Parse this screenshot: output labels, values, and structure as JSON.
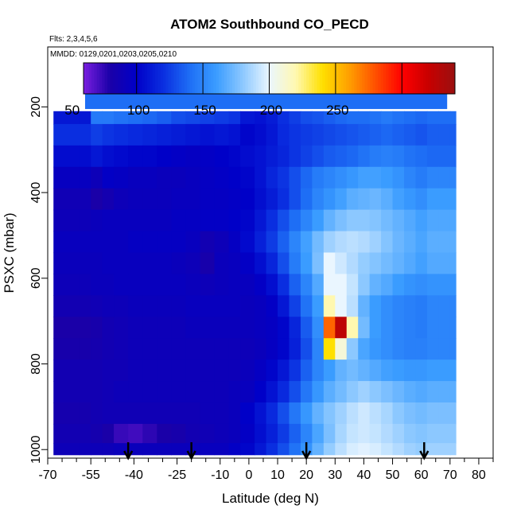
{
  "chart_data": {
    "type": "heatmap",
    "title": "ATOM2 Southbound CO_PECD",
    "flights_note": "Flts: 2,3,4,5,6",
    "dates_note": "MMDD: 0129,0201,0203,0205,0210",
    "xlabel": "Latitude (deg N)",
    "ylabel": "PSXC (mbar)",
    "xlim": [
      -70,
      85
    ],
    "ylim": [
      1020,
      60
    ],
    "x_ticks": [
      -70,
      -55,
      -40,
      -25,
      -10,
      0,
      10,
      20,
      30,
      40,
      50,
      60,
      70,
      80
    ],
    "x_tick_labels": [
      "-70",
      "-55",
      "-40",
      "-25",
      "-10",
      "0",
      "10",
      "20",
      "30",
      "40",
      "50",
      "60",
      "70",
      "80"
    ],
    "x_minor_ticks": [
      -65,
      -60,
      -50,
      -45,
      -35,
      -30,
      -20,
      -15,
      -5,
      5,
      15,
      25,
      35,
      45,
      55,
      65,
      75,
      85
    ],
    "y_ticks": [
      200,
      400,
      600,
      800,
      1000
    ],
    "y_tick_labels": [
      "200",
      "400",
      "600",
      "800",
      "1000"
    ],
    "colorbar": {
      "range": [
        10,
        290
      ],
      "ticks": [
        50,
        100,
        150,
        200,
        250
      ],
      "tick_labels": [
        "50",
        "100",
        "150",
        "200",
        "250"
      ],
      "colors": [
        "#7a1fe0",
        "#1a00a8",
        "#0000c8",
        "#0a2ee0",
        "#1e6ef5",
        "#3a9cff",
        "#8cc8ff",
        "#eaf6ff",
        "#fff8b0",
        "#ffe000",
        "#ffa000",
        "#ff5000",
        "#ff0000",
        "#c80000",
        "#9a1010"
      ]
    },
    "arrows_lat": [
      -42,
      -20,
      20,
      61
    ],
    "lat_edges": [
      -68,
      -59,
      -55,
      -51,
      -47,
      -42,
      -37,
      -32,
      -27,
      -22,
      -17,
      -12,
      -7,
      -3,
      2,
      6,
      10,
      14,
      18,
      22,
      26,
      30,
      34,
      38,
      42,
      46,
      50,
      54,
      58,
      62,
      66,
      70,
      72
    ],
    "top_layer": {
      "lat_range": [
        -57,
        69
      ],
      "p_range": [
        170,
        205
      ],
      "value": 90
    },
    "p_levels": [
      {
        "p": 215,
        "values": [
          60,
          60,
          95,
          95,
          92,
          90,
          88,
          85,
          80,
          78,
          76,
          74,
          72,
          60,
          58,
          62,
          70,
          75,
          80,
          82,
          85,
          88,
          90,
          90,
          92,
          95,
          92,
          90,
          88,
          90,
          90,
          90
        ]
      },
      {
        "p": 265,
        "values": [
          70,
          70,
          75,
          72,
          70,
          68,
          66,
          64,
          62,
          60,
          58,
          60,
          58,
          52,
          55,
          60,
          68,
          72,
          74,
          76,
          78,
          80,
          82,
          84,
          86,
          88,
          86,
          84,
          82,
          85,
          85,
          85
        ]
      },
      {
        "p": 315,
        "values": [
          55,
          55,
          60,
          56,
          54,
          52,
          52,
          50,
          48,
          46,
          48,
          50,
          52,
          55,
          58,
          62,
          66,
          72,
          76,
          80,
          84,
          86,
          88,
          92,
          96,
          98,
          96,
          92,
          90,
          88,
          88,
          88
        ]
      },
      {
        "p": 365,
        "values": [
          45,
          45,
          40,
          48,
          46,
          44,
          44,
          42,
          42,
          44,
          46,
          48,
          50,
          52,
          58,
          66,
          72,
          80,
          88,
          96,
          100,
          104,
          108,
          112,
          112,
          110,
          106,
          100,
          96,
          100,
          100,
          100
        ]
      },
      {
        "p": 415,
        "values": [
          38,
          38,
          30,
          35,
          40,
          42,
          42,
          42,
          44,
          44,
          46,
          46,
          48,
          50,
          56,
          62,
          70,
          80,
          90,
          100,
          106,
          112,
          118,
          120,
          122,
          118,
          112,
          108,
          104,
          110,
          110,
          110
        ]
      },
      {
        "p": 465,
        "values": [
          40,
          40,
          42,
          44,
          44,
          44,
          44,
          44,
          46,
          46,
          48,
          48,
          50,
          52,
          60,
          70,
          80,
          90,
          100,
          110,
          120,
          126,
          130,
          130,
          128,
          124,
          120,
          116,
          112,
          115,
          115,
          115
        ]
      },
      {
        "p": 515,
        "values": [
          44,
          44,
          44,
          44,
          44,
          46,
          46,
          46,
          46,
          44,
          36,
          40,
          46,
          54,
          64,
          74,
          86,
          100,
          112,
          124,
          134,
          138,
          140,
          138,
          134,
          128,
          122,
          118,
          114,
          118,
          118,
          118
        ]
      },
      {
        "p": 565,
        "values": [
          42,
          42,
          42,
          44,
          44,
          44,
          44,
          44,
          42,
          40,
          32,
          42,
          44,
          48,
          56,
          66,
          80,
          96,
          110,
          126,
          150,
          144,
          138,
          132,
          128,
          124,
          120,
          116,
          112,
          116,
          116,
          116
        ]
      },
      {
        "p": 615,
        "values": [
          40,
          40,
          42,
          42,
          44,
          44,
          44,
          44,
          44,
          42,
          40,
          42,
          44,
          44,
          48,
          56,
          70,
          86,
          100,
          116,
          150,
          150,
          142,
          130,
          120,
          116,
          110,
          106,
          104,
          106,
          106,
          106
        ]
      },
      {
        "p": 665,
        "values": [
          36,
          36,
          38,
          40,
          40,
          42,
          42,
          42,
          42,
          44,
          44,
          44,
          44,
          42,
          44,
          48,
          60,
          76,
          92,
          110,
          170,
          150,
          140,
          120,
          110,
          104,
          100,
          98,
          96,
          100,
          100,
          100
        ]
      },
      {
        "p": 715,
        "values": [
          30,
          30,
          32,
          36,
          38,
          40,
          40,
          40,
          40,
          42,
          42,
          42,
          42,
          42,
          44,
          46,
          52,
          66,
          84,
          104,
          225,
          275,
          170,
          124,
          110,
          104,
          100,
          98,
          96,
          100,
          100,
          100
        ]
      },
      {
        "p": 765,
        "values": [
          32,
          32,
          34,
          36,
          38,
          40,
          40,
          40,
          40,
          40,
          40,
          40,
          40,
          40,
          42,
          46,
          52,
          64,
          80,
          100,
          190,
          160,
          130,
          114,
          108,
          104,
          100,
          98,
          98,
          100,
          100,
          100
        ]
      },
      {
        "p": 815,
        "values": [
          36,
          36,
          36,
          38,
          38,
          40,
          40,
          40,
          40,
          40,
          40,
          40,
          40,
          42,
          46,
          52,
          60,
          72,
          86,
          100,
          110,
          120,
          124,
          120,
          116,
          112,
          110,
          108,
          108,
          110,
          110,
          110
        ]
      },
      {
        "p": 865,
        "values": [
          36,
          36,
          36,
          38,
          40,
          40,
          40,
          40,
          40,
          40,
          40,
          40,
          42,
          44,
          50,
          58,
          68,
          80,
          94,
          108,
          118,
          124,
          130,
          134,
          130,
          126,
          122,
          118,
          116,
          118,
          118,
          118
        ]
      },
      {
        "p": 915,
        "values": [
          34,
          34,
          36,
          38,
          38,
          38,
          38,
          38,
          38,
          38,
          40,
          40,
          42,
          50,
          58,
          68,
          80,
          94,
          108,
          120,
          128,
          134,
          140,
          144,
          140,
          136,
          130,
          126,
          124,
          126,
          126,
          126
        ]
      },
      {
        "p": 965,
        "values": [
          36,
          36,
          34,
          30,
          24,
          22,
          26,
          30,
          32,
          36,
          38,
          40,
          42,
          48,
          56,
          64,
          74,
          86,
          100,
          114,
          126,
          136,
          142,
          144,
          142,
          138,
          134,
          130,
          128,
          130,
          130,
          130
        ]
      },
      {
        "p": 1005,
        "values": [
          40,
          40,
          40,
          40,
          42,
          42,
          42,
          42,
          42,
          42,
          44,
          44,
          48,
          52,
          60,
          70,
          80,
          92,
          106,
          120,
          132,
          140,
          146,
          148,
          146,
          142,
          138,
          134,
          132,
          134,
          134,
          134
        ]
      }
    ]
  }
}
